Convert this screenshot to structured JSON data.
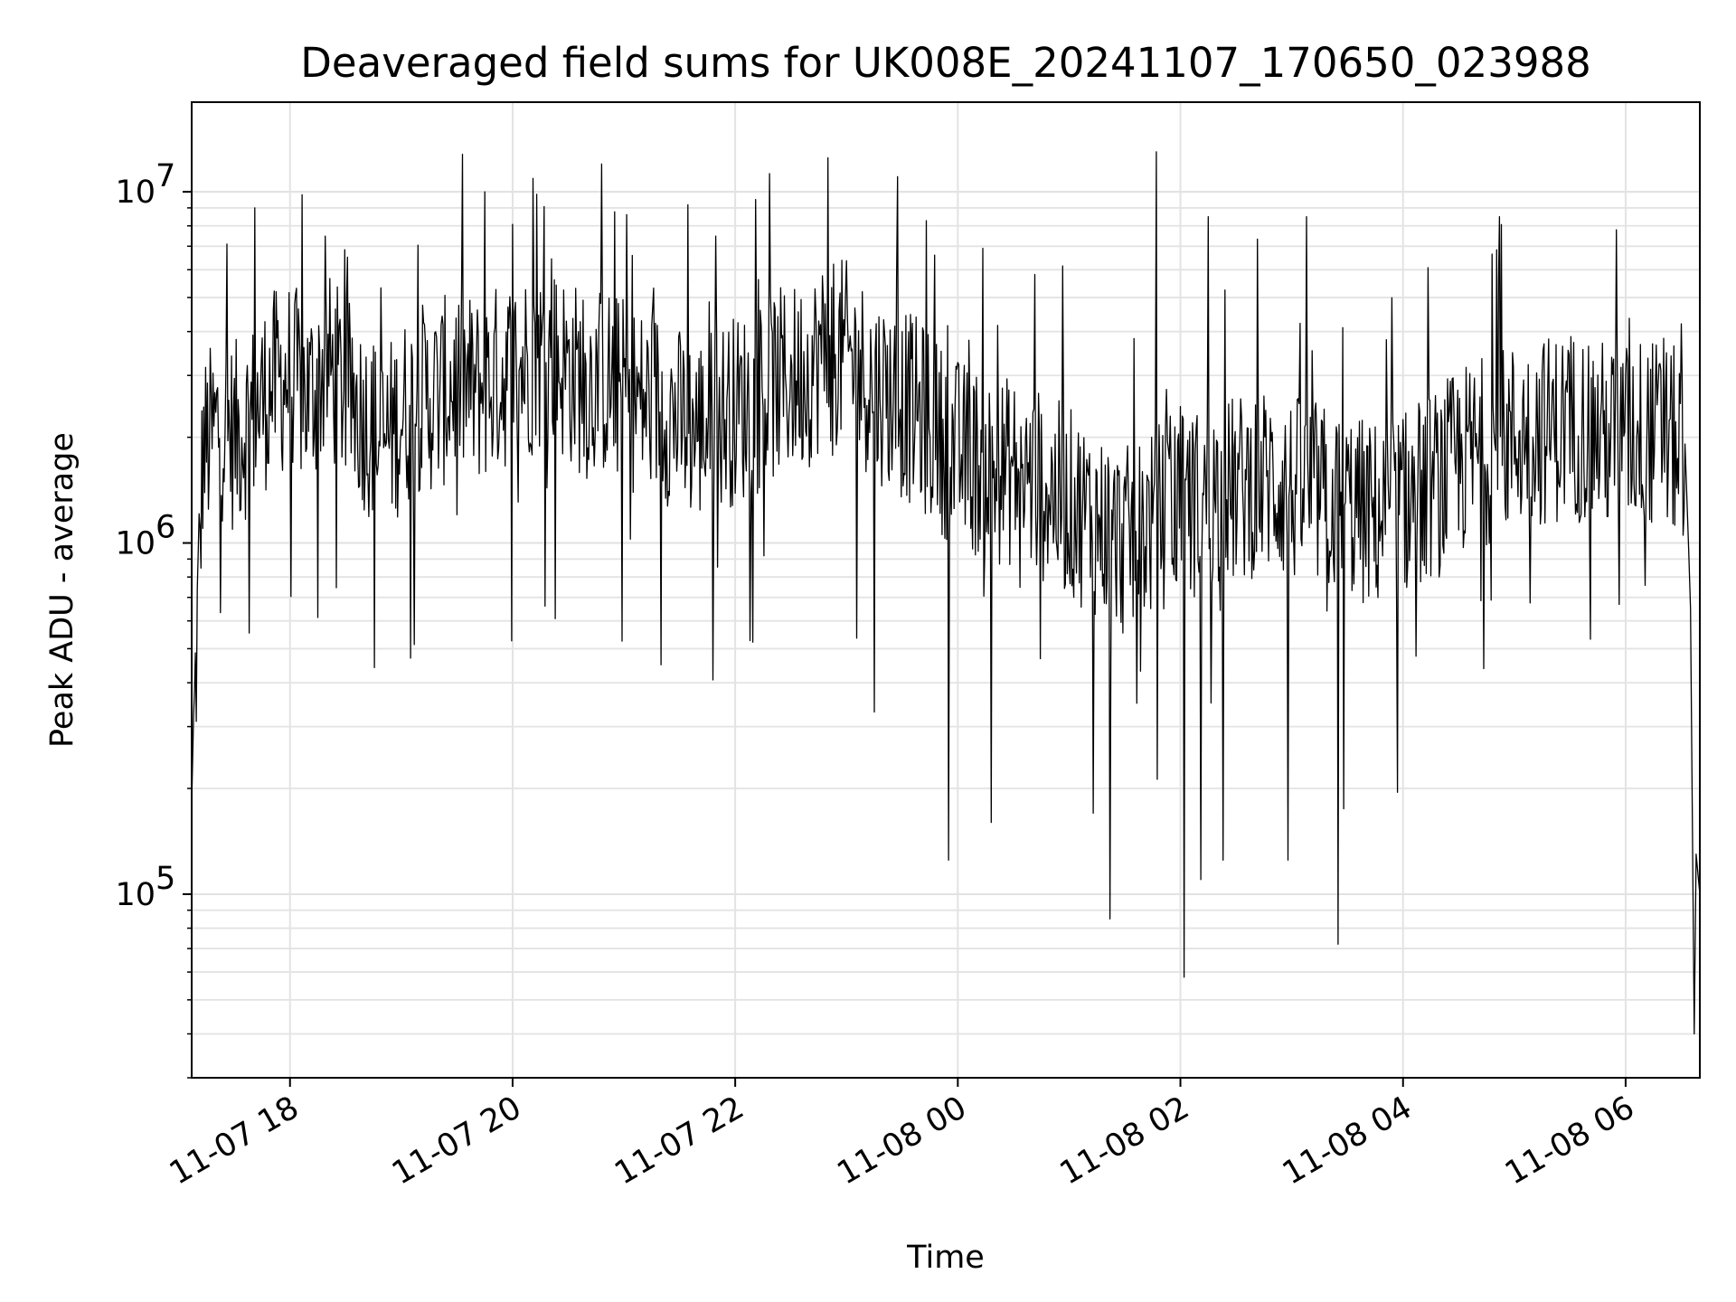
{
  "chart_data": {
    "type": "line",
    "title": "Deaveraged field sums for UK008E_20241107_170650_023988",
    "xlabel": "Time",
    "ylabel": "Peak ADU - average",
    "yscale": "log",
    "ylim": [
      30000,
      18000000
    ],
    "xlim": [
      "2024-11-07 17:07",
      "2024-11-08 06:40"
    ],
    "grid": true,
    "line_color": "#000000",
    "x_ticks": [
      "11-07 18",
      "11-07 20",
      "11-07 22",
      "11-08 00",
      "11-08 02",
      "11-08 04",
      "11-08 06"
    ],
    "y_ticks": [
      {
        "value": 100000,
        "base": "10",
        "exp": "5"
      },
      {
        "value": 1000000,
        "base": "10",
        "exp": "6"
      },
      {
        "value": 10000000,
        "base": "10",
        "exp": "7"
      }
    ],
    "series": [
      {
        "x": [
          "2024-11-07 17:07",
          "2024-11-07 17:13",
          "2024-11-07 17:22",
          "2024-11-07 17:30",
          "2024-11-07 17:40",
          "2024-11-07 17:50",
          "2024-11-07 18:00",
          "2024-11-07 18:10",
          "2024-11-07 18:20",
          "2024-11-07 18:30",
          "2024-11-07 18:40",
          "2024-11-07 18:50",
          "2024-11-07 19:00",
          "2024-11-07 19:10",
          "2024-11-07 19:20",
          "2024-11-07 19:30",
          "2024-11-07 19:40",
          "2024-11-07 19:50",
          "2024-11-07 20:00",
          "2024-11-07 20:10",
          "2024-11-07 20:20",
          "2024-11-07 20:30",
          "2024-11-07 20:40",
          "2024-11-07 20:50",
          "2024-11-07 21:00",
          "2024-11-07 21:10",
          "2024-11-07 21:20",
          "2024-11-07 21:30",
          "2024-11-07 21:40",
          "2024-11-07 21:50",
          "2024-11-07 22:00",
          "2024-11-07 22:10",
          "2024-11-07 22:20",
          "2024-11-07 22:30",
          "2024-11-07 22:40",
          "2024-11-07 22:50",
          "2024-11-07 23:00",
          "2024-11-07 23:10",
          "2024-11-07 23:20",
          "2024-11-07 23:30",
          "2024-11-07 23:40",
          "2024-11-07 23:50",
          "2024-11-08 00:00",
          "2024-11-08 00:10",
          "2024-11-08 00:20",
          "2024-11-08 00:30",
          "2024-11-08 00:40",
          "2024-11-08 00:50",
          "2024-11-08 01:00",
          "2024-11-08 01:10",
          "2024-11-08 01:20",
          "2024-11-08 01:30",
          "2024-11-08 01:40",
          "2024-11-08 01:50",
          "2024-11-08 02:00",
          "2024-11-08 02:10",
          "2024-11-08 02:20",
          "2024-11-08 02:30",
          "2024-11-08 02:40",
          "2024-11-08 02:50",
          "2024-11-08 03:00",
          "2024-11-08 03:10",
          "2024-11-08 03:20",
          "2024-11-08 03:30",
          "2024-11-08 03:40",
          "2024-11-08 03:50",
          "2024-11-08 04:00",
          "2024-11-08 04:10",
          "2024-11-08 04:20",
          "2024-11-08 04:30",
          "2024-11-08 04:40",
          "2024-11-08 04:50",
          "2024-11-08 05:00",
          "2024-11-08 05:10",
          "2024-11-08 05:20",
          "2024-11-08 05:30",
          "2024-11-08 05:40",
          "2024-11-08 05:50",
          "2024-11-08 06:00",
          "2024-11-08 06:10",
          "2024-11-08 06:20",
          "2024-11-08 06:30",
          "2024-11-08 06:34",
          "2024-11-08 06:37",
          "2024-11-08 06:40"
        ],
        "y": [
          180000,
          1800000,
          2200000,
          2000000,
          2300000,
          2800000,
          3000000,
          2600000,
          3200000,
          2700000,
          2300000,
          1900000,
          2300000,
          2600000,
          2600000,
          2900000,
          2700000,
          2900000,
          3100000,
          3300000,
          3400000,
          3100000,
          2800000,
          2900000,
          2700000,
          2500000,
          2500000,
          2200000,
          2100000,
          2300000,
          2400000,
          2500000,
          2800000,
          2900000,
          3100000,
          3600000,
          3400000,
          3000000,
          2700000,
          2500000,
          2300000,
          2000000,
          1800000,
          1700000,
          1600000,
          1600000,
          1500000,
          1400000,
          1300000,
          1200000,
          1100000,
          1000000,
          1100000,
          1200000,
          1300000,
          1300000,
          1400000,
          1400000,
          1500000,
          1500000,
          1400000,
          1400000,
          1300000,
          1300000,
          1200000,
          1200000,
          1300000,
          1400000,
          1500000,
          1700000,
          1800000,
          1900000,
          2000000,
          2100000,
          2100000,
          2200000,
          2100000,
          2000000,
          2000000,
          2100000,
          2000000,
          1900000,
          700000,
          40000,
          110000
        ],
        "spikes_high": [
          {
            "x": "2024-11-07 17:41",
            "y": 9000000
          },
          {
            "x": "2024-11-07 19:45",
            "y": 10000000
          },
          {
            "x": "2024-11-07 20:48",
            "y": 12000000
          },
          {
            "x": "2024-11-07 22:50",
            "y": 12500000
          },
          {
            "x": "2024-11-08 01:47",
            "y": 13000000
          },
          {
            "x": "2024-11-08 02:15",
            "y": 8500000
          },
          {
            "x": "2024-11-08 03:08",
            "y": 8500000
          },
          {
            "x": "2024-11-08 04:52",
            "y": 8500000
          },
          {
            "x": "2024-11-08 05:55",
            "y": 7800000
          }
        ],
        "spikes_low": [
          {
            "x": "2024-11-07 19:05",
            "y": 470000
          },
          {
            "x": "2024-11-07 21:20",
            "y": 450000
          },
          {
            "x": "2024-11-07 23:15",
            "y": 330000
          },
          {
            "x": "2024-11-07 23:55",
            "y": 125000
          },
          {
            "x": "2024-11-08 00:18",
            "y": 160000
          },
          {
            "x": "2024-11-08 01:13",
            "y": 170000
          },
          {
            "x": "2024-11-08 01:22",
            "y": 85000
          },
          {
            "x": "2024-11-08 02:02",
            "y": 58000
          },
          {
            "x": "2024-11-08 02:11",
            "y": 110000
          },
          {
            "x": "2024-11-08 02:23",
            "y": 125000
          },
          {
            "x": "2024-11-08 02:58",
            "y": 125000
          },
          {
            "x": "2024-11-08 03:25",
            "y": 72000
          },
          {
            "x": "2024-11-08 03:28",
            "y": 175000
          },
          {
            "x": "2024-11-08 03:57",
            "y": 195000
          }
        ]
      }
    ]
  }
}
